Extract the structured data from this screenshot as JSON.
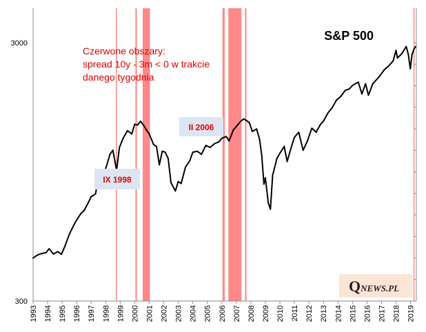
{
  "chart_data": {
    "type": "line",
    "title": "S&P 500",
    "y_scale": "log",
    "ylim": [
      300,
      4000
    ],
    "y_ticks": [
      "3000",
      "300"
    ],
    "x_range": [
      1993,
      2019.4
    ],
    "x_ticks": [
      "1993",
      "1994",
      "1995",
      "1996",
      "1997",
      "1998",
      "1999",
      "2000",
      "2001",
      "2002",
      "2003",
      "2004",
      "2005",
      "2006",
      "2007",
      "2008",
      "2009",
      "2010",
      "2011",
      "2012",
      "2013",
      "2014",
      "2015",
      "2016",
      "2017",
      "2018",
      "2019"
    ],
    "grid": false,
    "annotation": {
      "lines": [
        "Czerwone obszary:",
        "spread 10y - 3m < 0 w trakcie",
        "danego tygodnia"
      ]
    },
    "callouts": [
      {
        "label": "IX 1998"
      },
      {
        "label": "II 2006"
      }
    ],
    "inversion_periods": [
      [
        1998.7,
        1998.76
      ],
      [
        2000.05,
        2000.15
      ],
      [
        2000.55,
        2001.05
      ],
      [
        2006.05,
        2006.2
      ],
      [
        2006.45,
        2007.35
      ],
      [
        2007.6,
        2007.7
      ],
      [
        2019.2,
        2019.25
      ]
    ],
    "series": [
      {
        "values": [
          [
            1993.0,
            440
          ],
          [
            1993.3,
            452
          ],
          [
            1993.6,
            458
          ],
          [
            1993.9,
            462
          ],
          [
            1994.1,
            478
          ],
          [
            1994.4,
            456
          ],
          [
            1994.7,
            466
          ],
          [
            1994.95,
            455
          ],
          [
            1995.2,
            490
          ],
          [
            1995.5,
            545
          ],
          [
            1995.8,
            590
          ],
          [
            1996.0,
            618
          ],
          [
            1996.3,
            655
          ],
          [
            1996.5,
            670
          ],
          [
            1996.8,
            720
          ],
          [
            1997.0,
            760
          ],
          [
            1997.3,
            780
          ],
          [
            1997.5,
            900
          ],
          [
            1997.8,
            955
          ],
          [
            1998.0,
            975
          ],
          [
            1998.3,
            1110
          ],
          [
            1998.5,
            1150
          ],
          [
            1998.65,
            1030
          ],
          [
            1998.75,
            960
          ],
          [
            1998.95,
            1180
          ],
          [
            1999.2,
            1280
          ],
          [
            1999.5,
            1370
          ],
          [
            1999.8,
            1330
          ],
          [
            2000.0,
            1450
          ],
          [
            2000.2,
            1440
          ],
          [
            2000.4,
            1490
          ],
          [
            2000.6,
            1440
          ],
          [
            2000.8,
            1380
          ],
          [
            2001.0,
            1330
          ],
          [
            2001.3,
            1210
          ],
          [
            2001.5,
            1190
          ],
          [
            2001.7,
            1010
          ],
          [
            2001.9,
            1140
          ],
          [
            2002.1,
            1130
          ],
          [
            2002.3,
            1070
          ],
          [
            2002.5,
            860
          ],
          [
            2002.7,
            820
          ],
          [
            2002.8,
            800
          ],
          [
            2003.0,
            870
          ],
          [
            2003.2,
            855
          ],
          [
            2003.5,
            990
          ],
          [
            2003.8,
            1050
          ],
          [
            2004.0,
            1130
          ],
          [
            2004.3,
            1140
          ],
          [
            2004.6,
            1110
          ],
          [
            2004.9,
            1200
          ],
          [
            2005.2,
            1180
          ],
          [
            2005.5,
            1220
          ],
          [
            2005.8,
            1240
          ],
          [
            2006.0,
            1280
          ],
          [
            2006.3,
            1300
          ],
          [
            2006.5,
            1250
          ],
          [
            2006.8,
            1380
          ],
          [
            2007.0,
            1420
          ],
          [
            2007.3,
            1490
          ],
          [
            2007.5,
            1520
          ],
          [
            2007.7,
            1500
          ],
          [
            2007.9,
            1470
          ],
          [
            2008.1,
            1360
          ],
          [
            2008.4,
            1390
          ],
          [
            2008.6,
            1270
          ],
          [
            2008.75,
            1100
          ],
          [
            2008.9,
            850
          ],
          [
            2009.0,
            900
          ],
          [
            2009.2,
            720
          ],
          [
            2009.35,
            680
          ],
          [
            2009.5,
            920
          ],
          [
            2009.8,
            1070
          ],
          [
            2010.0,
            1120
          ],
          [
            2010.3,
            1190
          ],
          [
            2010.5,
            1040
          ],
          [
            2010.8,
            1190
          ],
          [
            2011.0,
            1290
          ],
          [
            2011.3,
            1350
          ],
          [
            2011.6,
            1150
          ],
          [
            2011.9,
            1250
          ],
          [
            2012.2,
            1400
          ],
          [
            2012.5,
            1350
          ],
          [
            2012.8,
            1450
          ],
          [
            2013.0,
            1490
          ],
          [
            2013.3,
            1600
          ],
          [
            2013.6,
            1680
          ],
          [
            2013.9,
            1800
          ],
          [
            2014.2,
            1860
          ],
          [
            2014.5,
            1960
          ],
          [
            2014.8,
            1990
          ],
          [
            2015.0,
            2050
          ],
          [
            2015.4,
            2110
          ],
          [
            2015.65,
            1900
          ],
          [
            2015.9,
            2080
          ],
          [
            2016.1,
            1880
          ],
          [
            2016.4,
            2080
          ],
          [
            2016.7,
            2170
          ],
          [
            2016.9,
            2240
          ],
          [
            2017.2,
            2360
          ],
          [
            2017.5,
            2440
          ],
          [
            2017.8,
            2550
          ],
          [
            2018.0,
            2800
          ],
          [
            2018.1,
            2620
          ],
          [
            2018.4,
            2720
          ],
          [
            2018.7,
            2900
          ],
          [
            2018.85,
            2700
          ],
          [
            2018.98,
            2380
          ],
          [
            2019.1,
            2700
          ],
          [
            2019.25,
            2840
          ],
          [
            2019.35,
            2900
          ]
        ]
      }
    ]
  },
  "logo": {
    "q": "Q",
    "rest": "NEWS.PL"
  },
  "colors": {
    "line": "#000000",
    "band": "#ff6060",
    "note": "#e00000",
    "callout_bg": "#dce6f2",
    "logo_bg": "#fde5d6"
  }
}
